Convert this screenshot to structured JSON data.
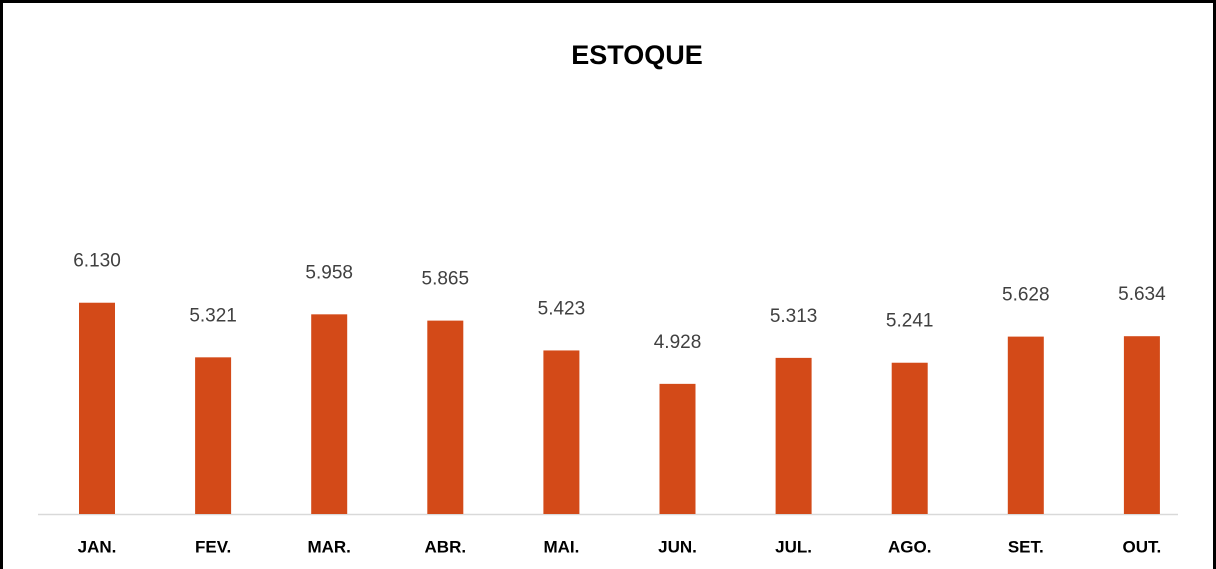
{
  "chart_data": {
    "type": "bar",
    "title": "ESTOQUE",
    "categories": [
      "JAN.",
      "FEV.",
      "MAR.",
      "ABR.",
      "MAI.",
      "JUN.",
      "JUL.",
      "AGO.",
      "SET.",
      "OUT."
    ],
    "values": [
      6130,
      5321,
      5958,
      5865,
      5423,
      4928,
      5313,
      5241,
      5628,
      5634
    ],
    "value_labels": [
      "6.130",
      "5.321",
      "5.958",
      "5.865",
      "5.423",
      "4.928",
      "5.313",
      "5.241",
      "5.628",
      "5.634"
    ],
    "color": "#d34a18",
    "ylim": [
      3000,
      7000
    ]
  }
}
